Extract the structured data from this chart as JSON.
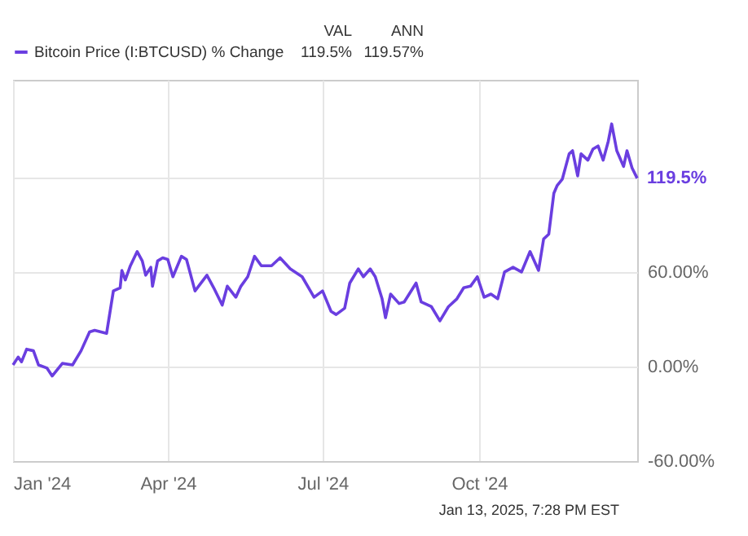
{
  "chart_data": {
    "type": "line",
    "x": [
      "2024-01-01",
      "2024-01-04",
      "2024-01-06",
      "2024-01-09",
      "2024-01-13",
      "2024-01-16",
      "2024-01-21",
      "2024-01-24",
      "2024-01-30",
      "2024-02-05",
      "2024-02-10",
      "2024-02-15",
      "2024-02-18",
      "2024-02-25",
      "2024-02-29",
      "2024-03-04",
      "2024-03-05",
      "2024-03-07",
      "2024-03-10",
      "2024-03-14",
      "2024-03-17",
      "2024-03-19",
      "2024-03-22",
      "2024-03-23",
      "2024-03-26",
      "2024-03-29",
      "2024-04-01",
      "2024-04-04",
      "2024-04-09",
      "2024-04-12",
      "2024-04-17",
      "2024-04-24",
      "2024-04-28",
      "2024-05-03",
      "2024-05-06",
      "2024-05-11",
      "2024-05-14",
      "2024-05-18",
      "2024-05-22",
      "2024-05-26",
      "2024-06-01",
      "2024-06-06",
      "2024-06-12",
      "2024-06-19",
      "2024-06-26",
      "2024-07-01",
      "2024-07-06",
      "2024-07-09",
      "2024-07-14",
      "2024-07-17",
      "2024-07-22",
      "2024-07-25",
      "2024-07-29",
      "2024-08-01",
      "2024-08-05",
      "2024-08-07",
      "2024-08-10",
      "2024-08-15",
      "2024-08-18",
      "2024-08-25",
      "2024-08-28",
      "2024-09-03",
      "2024-09-08",
      "2024-09-13",
      "2024-09-18",
      "2024-09-22",
      "2024-09-26",
      "2024-09-30",
      "2024-10-04",
      "2024-10-08",
      "2024-10-12",
      "2024-10-16",
      "2024-10-21",
      "2024-10-26",
      "2024-10-31",
      "2024-11-05",
      "2024-11-08",
      "2024-11-11",
      "2024-11-14",
      "2024-11-16",
      "2024-11-19",
      "2024-11-23",
      "2024-11-25",
      "2024-11-28",
      "2024-11-30",
      "2024-12-04",
      "2024-12-07",
      "2024-12-10",
      "2024-12-13",
      "2024-12-16",
      "2024-12-18",
      "2024-12-21",
      "2024-12-25",
      "2024-12-27",
      "2024-12-30",
      "2025-01-02"
    ],
    "series": [
      {
        "name": "Bitcoin Price (I:BTCUSD) % Change",
        "color": "#6a3ee0",
        "values": [
          1,
          6,
          3,
          11,
          10,
          1,
          -1,
          -6,
          2,
          1,
          10,
          22,
          23,
          21,
          48,
          50,
          61,
          55,
          64,
          73,
          67,
          58,
          63,
          51,
          67,
          69,
          68,
          57,
          70,
          68,
          48,
          58,
          50,
          39,
          51,
          44,
          51,
          57,
          70,
          64,
          64,
          69,
          62,
          57,
          44,
          48,
          35,
          33,
          37,
          53,
          62,
          57,
          62,
          57,
          43,
          31,
          46,
          40,
          41,
          53,
          41,
          38,
          29,
          38,
          43,
          50,
          51,
          57,
          44,
          46,
          43,
          60,
          63,
          60,
          73,
          61,
          81,
          84,
          110,
          115,
          119,
          135,
          137,
          121,
          135,
          131,
          138,
          140,
          131,
          143,
          154,
          137,
          127,
          137,
          126,
          119.5
        ],
        "value_labels": [
          null,
          null,
          null,
          null,
          null,
          null,
          null,
          null,
          null,
          null,
          null,
          null,
          null,
          null,
          null,
          null,
          null,
          null,
          null,
          null,
          null,
          null,
          null,
          null,
          null,
          null,
          null,
          null,
          null,
          null,
          null,
          null,
          null,
          null,
          null,
          null,
          null,
          null,
          null,
          null,
          null,
          null,
          null,
          null,
          null,
          null,
          null,
          null,
          null,
          null,
          null,
          null,
          null,
          null,
          null,
          null,
          null,
          null,
          null,
          null,
          null,
          null,
          null,
          null,
          null,
          null,
          null,
          null,
          null,
          null,
          null,
          null,
          null,
          null,
          null,
          null,
          null,
          null,
          null,
          null,
          null,
          null,
          null,
          null,
          null,
          null,
          null,
          null,
          null,
          null,
          null,
          null,
          null,
          null,
          null,
          "119.5%"
        ]
      }
    ],
    "xlim": [
      "2024-01-01",
      "2025-01-02"
    ],
    "xticks": [
      {
        "value": "2024-01-01",
        "label": "Jan '24"
      },
      {
        "value": "2024-04-01",
        "label": "Apr '24"
      },
      {
        "value": "2024-07-01",
        "label": "Jul '24"
      },
      {
        "value": "2024-10-01",
        "label": "Oct '24"
      }
    ],
    "ylim": [
      -60,
      182
    ],
    "yticks": [
      {
        "value": -60,
        "label": "-60.00%"
      },
      {
        "value": 0,
        "label": "0.00%"
      },
      {
        "value": 60,
        "label": "60.00%"
      },
      {
        "value": 120,
        "label": null
      }
    ],
    "grid": true,
    "legend": "top left",
    "line_style": "solid",
    "annotations": [
      "VAL",
      "ANN",
      "119.5%",
      "119.57%",
      "Jan 13, 2025, 7:28 PM EST"
    ]
  }
}
